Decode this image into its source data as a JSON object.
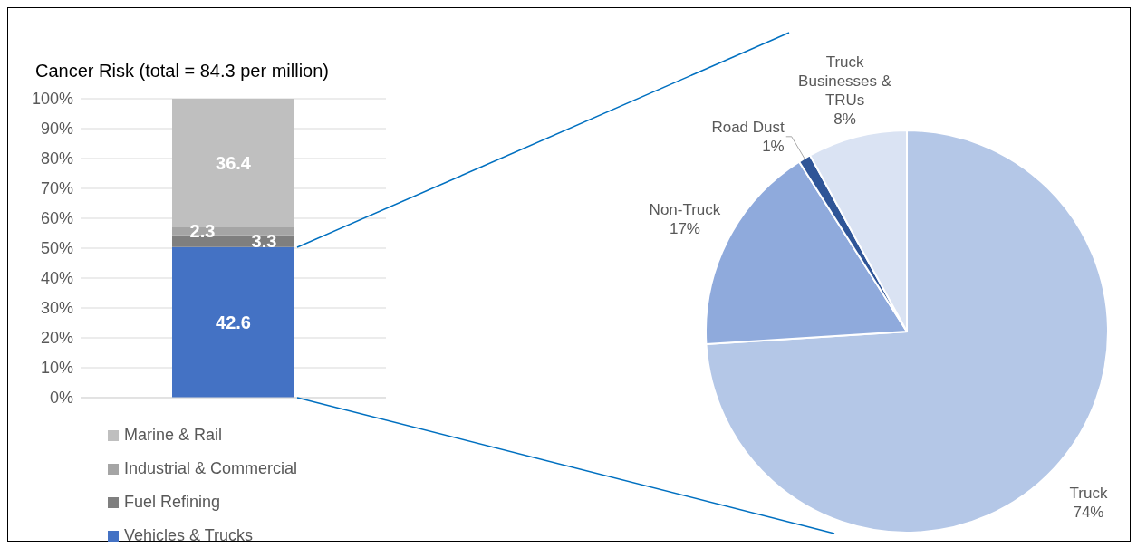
{
  "chart_data": [
    {
      "type": "bar",
      "title": "Cancer Risk (total = 84.3 per million)",
      "stacked": true,
      "categories": [
        null
      ],
      "series": [
        {
          "name": "Vehicles & Trucks",
          "color": "#4472c4",
          "values": [
            50.4
          ]
        },
        {
          "name": "Fuel Refining",
          "color": "#7f7f7f",
          "values": [
            3.9
          ]
        },
        {
          "name": "Industrial & Commercial",
          "color": "#a5a5a5",
          "values": [
            2.7
          ]
        },
        {
          "name": "Marine & Rail",
          "color": "#bfbfbf",
          "values": [
            43.0
          ]
        }
      ],
      "annotations": [
        "42.6",
        "3.3",
        "2.3",
        "36.4"
      ],
      "ylim": [
        0,
        100
      ],
      "yticks": [
        {
          "value": 0,
          "label": "0%"
        },
        {
          "value": 10,
          "label": "10%"
        },
        {
          "value": 20,
          "label": "20%"
        },
        {
          "value": 30,
          "label": "30%"
        },
        {
          "value": 40,
          "label": "40%"
        },
        {
          "value": 50,
          "label": "50%"
        },
        {
          "value": 60,
          "label": "60%"
        },
        {
          "value": 70,
          "label": "70%"
        },
        {
          "value": 80,
          "label": "80%"
        },
        {
          "value": 90,
          "label": "90%"
        },
        {
          "value": 100,
          "label": "100%"
        }
      ],
      "grid": "y",
      "legend": "bottom"
    },
    {
      "type": "pie",
      "categories": [
        "Truck",
        "Non-Truck",
        "Road Dust",
        "Truck Businesses & TRUs"
      ],
      "values": [
        74,
        17,
        1,
        8
      ],
      "colors": [
        "#b4c7e7",
        "#8faadc",
        "#2f5597",
        "#dae3f3"
      ],
      "value_labels": [
        "74%",
        "17%",
        "1%",
        "8%"
      ]
    }
  ]
}
